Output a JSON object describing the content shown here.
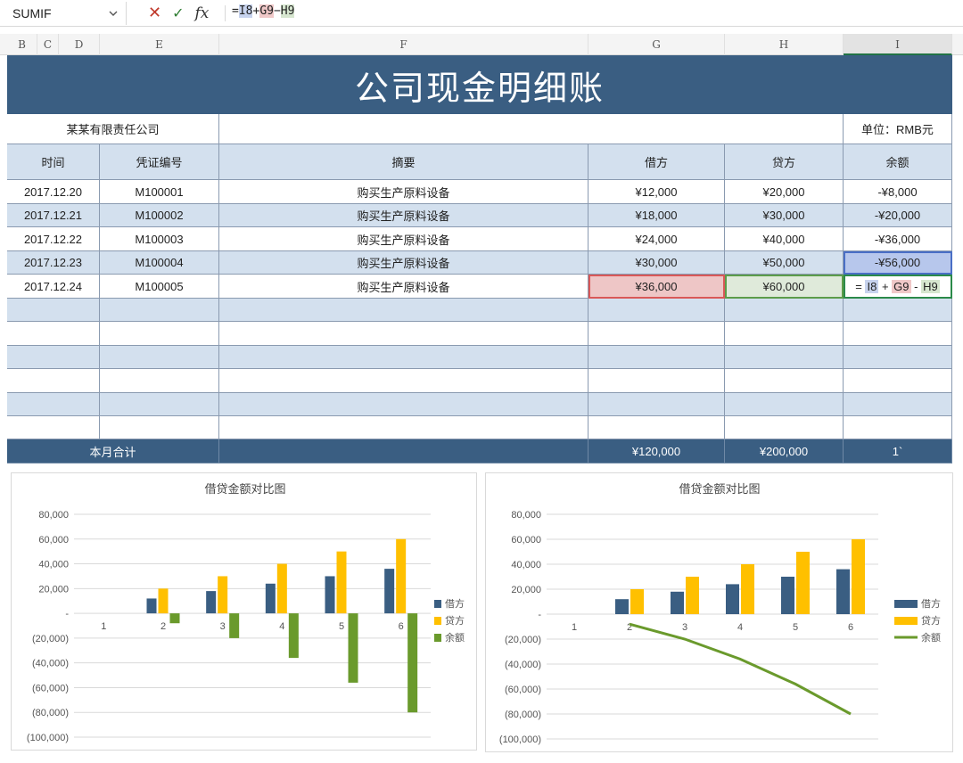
{
  "formula_bar": {
    "name_box": "SUMIF",
    "formula_prefix": "=",
    "ref1": "I8",
    "op1": "+",
    "ref2": "G9",
    "op2": "−",
    "ref3": "H9"
  },
  "columns": [
    "B",
    "C",
    "D",
    "E",
    "F",
    "G",
    "H",
    "I"
  ],
  "sheet": {
    "title": "公司现金明细账",
    "company": "某某有限责任公司",
    "unit": "单位：RMB元",
    "headers": [
      "时间",
      "凭证编号",
      "摘要",
      "借方",
      "贷方",
      "余额"
    ],
    "rows": [
      [
        "2017.12.20",
        "M100001",
        "购买生产原料设备",
        "¥12,000",
        "¥20,000",
        "-¥8,000"
      ],
      [
        "2017.12.21",
        "M100002",
        "购买生产原料设备",
        "¥18,000",
        "¥30,000",
        "-¥20,000"
      ],
      [
        "2017.12.22",
        "M100003",
        "购买生产原料设备",
        "¥24,000",
        "¥40,000",
        "-¥36,000"
      ],
      [
        "2017.12.23",
        "M100004",
        "购买生产原料设备",
        "¥30,000",
        "¥50,000",
        "-¥56,000"
      ],
      [
        "2017.12.24",
        "M100005",
        "购买生产原料设备",
        "¥36,000",
        "¥60,000",
        ""
      ]
    ],
    "edit_formula": {
      "eq": "=",
      "r1": "I8",
      "p1": "+",
      "r2": "G9",
      "p2": "-",
      "r3": "H9"
    },
    "footer": {
      "label": "本月合计",
      "debit": "¥120,000",
      "credit": "¥200,000",
      "balance": "1`"
    }
  },
  "colors": {
    "debit": "#3a5e82",
    "credit": "#ffc000",
    "balance": "#6a9a2c"
  },
  "chart_data": [
    {
      "type": "bar",
      "title": "借贷金额对比图",
      "categories": [
        "1",
        "2",
        "3",
        "4",
        "5",
        "6"
      ],
      "series": [
        {
          "name": "借方",
          "values": [
            0,
            12000,
            18000,
            24000,
            30000,
            36000
          ]
        },
        {
          "name": "贷方",
          "values": [
            0,
            20000,
            30000,
            40000,
            50000,
            60000
          ]
        },
        {
          "name": "余额",
          "values": [
            0,
            -8000,
            -20000,
            -36000,
            -56000,
            -80000
          ]
        }
      ],
      "ylim": [
        -100000,
        80000
      ],
      "yticks": [
        "80,000",
        "60,000",
        "40,000",
        "20,000",
        "-",
        "(20,000)",
        "(40,000)",
        "(60,000)",
        "(80,000)",
        "(100,000)"
      ],
      "legend": "right"
    },
    {
      "type": "bar",
      "title": "借贷金额对比图",
      "categories": [
        "1",
        "2",
        "3",
        "4",
        "5",
        "6"
      ],
      "series": [
        {
          "name": "借方",
          "values": [
            0,
            12000,
            18000,
            24000,
            30000,
            36000
          ]
        },
        {
          "name": "贷方",
          "values": [
            0,
            20000,
            30000,
            40000,
            50000,
            60000
          ]
        },
        {
          "name": "余额",
          "type": "line",
          "values": [
            null,
            -8000,
            -20000,
            -36000,
            -56000,
            -80000
          ]
        }
      ],
      "ylim": [
        -100000,
        80000
      ],
      "yticks": [
        "80,000",
        "60,000",
        "40,000",
        "20,000",
        "-",
        "(20,000)",
        "(40,000)",
        "(60,000)",
        "(80,000)",
        "(100,000)"
      ],
      "legend": "right"
    }
  ]
}
